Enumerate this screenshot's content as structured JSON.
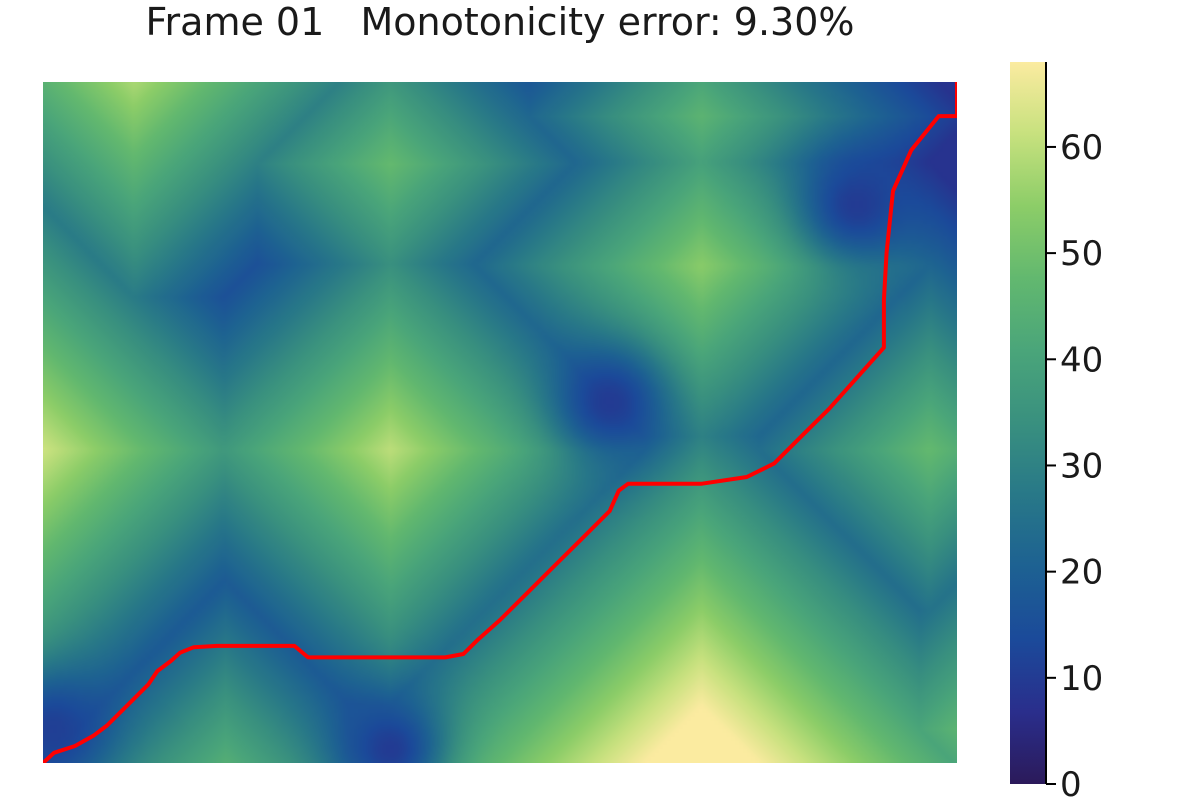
{
  "title": "Frame 01   Monotonicity error: 9.30%",
  "chart_data": {
    "type": "heatmap",
    "title": "Frame 01   Monotonicity error: 9.30%",
    "xlabel": "",
    "ylabel": "",
    "axes_visible": false,
    "colormap": "batlow-like (dark purple → blue → teal → green → pale yellow)",
    "colorbar": {
      "range": [
        0,
        68
      ],
      "ticks": [
        0,
        10,
        20,
        30,
        40,
        50,
        60
      ],
      "tick_labels": [
        "0",
        "10",
        "20",
        "30",
        "40",
        "50",
        "60"
      ],
      "placement": "right"
    },
    "colormap_stops": [
      {
        "v": 0.0,
        "color": "#2b1a5a"
      },
      {
        "v": 0.1,
        "color": "#2a2e8c"
      },
      {
        "v": 0.2,
        "color": "#1b4a9a"
      },
      {
        "v": 0.3,
        "color": "#1d6192"
      },
      {
        "v": 0.4,
        "color": "#287888"
      },
      {
        "v": 0.5,
        "color": "#39907f"
      },
      {
        "v": 0.6,
        "color": "#4aa57a"
      },
      {
        "v": 0.7,
        "color": "#62b86f"
      },
      {
        "v": 0.8,
        "color": "#8ccd68"
      },
      {
        "v": 0.9,
        "color": "#c7e17e"
      },
      {
        "v": 1.0,
        "color": "#fbeba0"
      }
    ],
    "field": {
      "x_range": [
        0,
        1
      ],
      "y_range": [
        0,
        1
      ],
      "description": "cost surface of radial peaks; approximate centers (x, y in 0..1 of plot, y upward) and peak values",
      "peaks": [
        {
          "x": 0.0,
          "y": 0.46,
          "value": 54
        },
        {
          "x": 0.38,
          "y": 0.46,
          "value": 52
        },
        {
          "x": 0.72,
          "y": 0.73,
          "value": 46
        },
        {
          "x": 0.72,
          "y": 0.0,
          "value": 68
        },
        {
          "x": 0.1,
          "y": 1.0,
          "value": 50
        },
        {
          "x": 0.38,
          "y": 0.88,
          "value": 40
        },
        {
          "x": 0.97,
          "y": 0.46,
          "value": 40
        },
        {
          "x": 0.2,
          "y": 0.0,
          "value": 36
        },
        {
          "x": 1.0,
          "y": 0.05,
          "value": 38
        },
        {
          "x": 0.72,
          "y": 0.95,
          "value": 38
        }
      ],
      "valleys": [
        {
          "x": 0.62,
          "y": 0.53,
          "value": 2
        },
        {
          "x": 0.89,
          "y": 0.82,
          "value": 2
        },
        {
          "x": 0.38,
          "y": 0.02,
          "value": 2
        },
        {
          "x": 0.01,
          "y": 0.05,
          "value": 3
        }
      ]
    },
    "series": [
      {
        "type": "line",
        "color": "#ff0000",
        "description": "warping path (x, y in 0..1 of plot area, y upward)",
        "points": [
          [
            0.0,
            0.0
          ],
          [
            0.012,
            0.015
          ],
          [
            0.035,
            0.025
          ],
          [
            0.055,
            0.04
          ],
          [
            0.07,
            0.055
          ],
          [
            0.085,
            0.075
          ],
          [
            0.1,
            0.095
          ],
          [
            0.115,
            0.115
          ],
          [
            0.125,
            0.135
          ],
          [
            0.14,
            0.15
          ],
          [
            0.15,
            0.162
          ],
          [
            0.165,
            0.17
          ],
          [
            0.19,
            0.172
          ],
          [
            0.22,
            0.172
          ],
          [
            0.25,
            0.172
          ],
          [
            0.275,
            0.172
          ],
          [
            0.29,
            0.155
          ],
          [
            0.32,
            0.155
          ],
          [
            0.36,
            0.155
          ],
          [
            0.4,
            0.155
          ],
          [
            0.44,
            0.155
          ],
          [
            0.46,
            0.16
          ],
          [
            0.475,
            0.18
          ],
          [
            0.5,
            0.21
          ],
          [
            0.53,
            0.25
          ],
          [
            0.56,
            0.29
          ],
          [
            0.59,
            0.33
          ],
          [
            0.62,
            0.37
          ],
          [
            0.63,
            0.4
          ],
          [
            0.64,
            0.41
          ],
          [
            0.68,
            0.41
          ],
          [
            0.72,
            0.41
          ],
          [
            0.77,
            0.42
          ],
          [
            0.8,
            0.44
          ],
          [
            0.83,
            0.48
          ],
          [
            0.86,
            0.52
          ],
          [
            0.9,
            0.58
          ],
          [
            0.92,
            0.61
          ],
          [
            0.92,
            0.68
          ],
          [
            0.923,
            0.75
          ],
          [
            0.93,
            0.84
          ],
          [
            0.95,
            0.9
          ],
          [
            0.98,
            0.95
          ],
          [
            1.0,
            0.95
          ],
          [
            1.0,
            1.0
          ]
        ]
      }
    ]
  }
}
